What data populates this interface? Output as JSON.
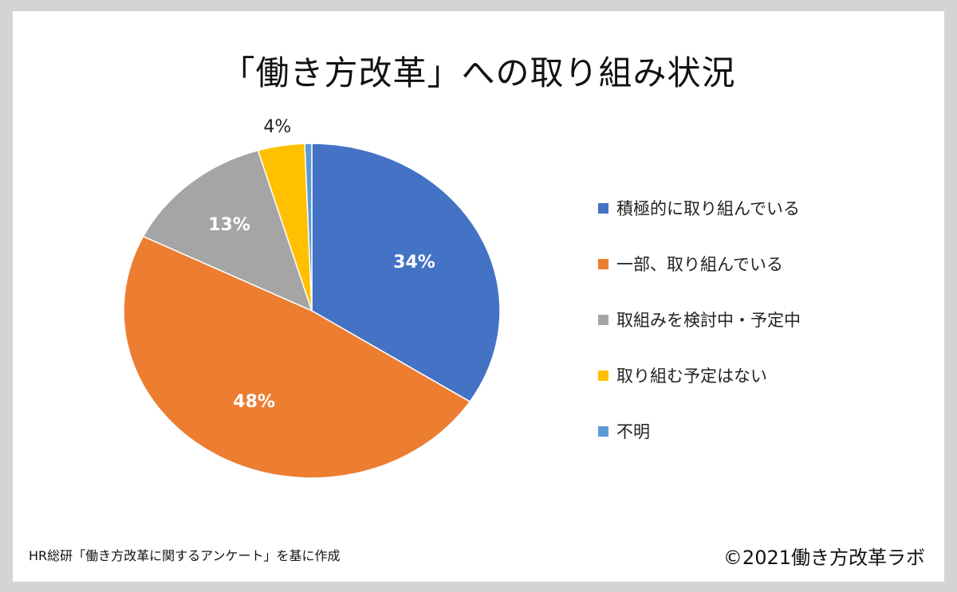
{
  "chart_data": {
    "type": "pie",
    "title": "「働き方改革」への取り組み状況",
    "categories": [
      "積極的に取り組んでいる",
      "一部、取り組んでいる",
      "取組みを検討中・予定中",
      "取り組む予定はない",
      "不明"
    ],
    "values": [
      34,
      48,
      13,
      4,
      0.6
    ],
    "data_labels": [
      "34%",
      "48%",
      "13%",
      "4%",
      ""
    ],
    "colors": [
      "#4472c4",
      "#ed7d31",
      "#a5a5a5",
      "#ffc000",
      "#5b9bd5"
    ],
    "legend_position": "right"
  },
  "footer": {
    "source": "HR総研「働き方改革に関するアンケート」を基に作成",
    "copyright": "©2021働き方改革ラボ"
  }
}
